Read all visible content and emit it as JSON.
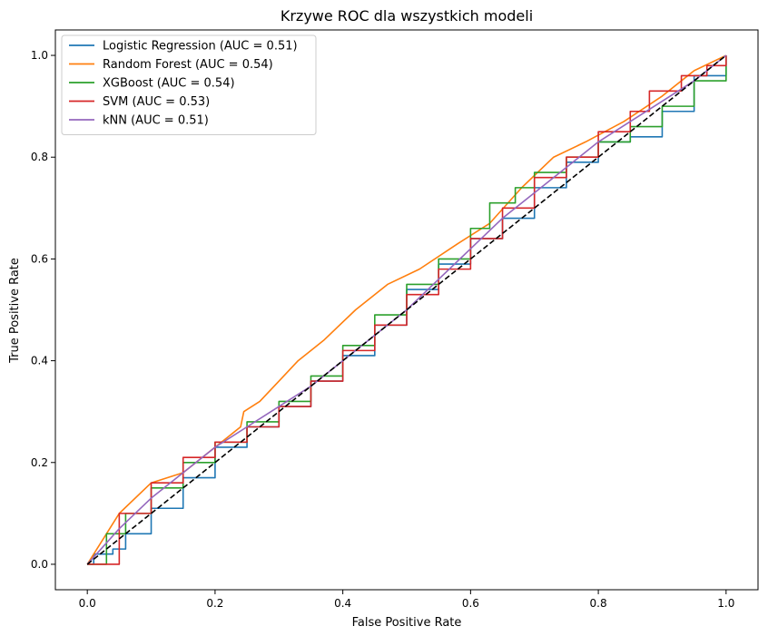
{
  "chart_data": {
    "type": "line",
    "title": "Krzywe ROC dla wszystkich modeli",
    "xlabel": "False Positive Rate",
    "ylabel": "True Positive Rate",
    "xlim": [
      -0.05,
      1.05
    ],
    "ylim": [
      -0.05,
      1.05
    ],
    "xticks": [
      "0.0",
      "0.2",
      "0.4",
      "0.6",
      "0.8",
      "1.0"
    ],
    "yticks": [
      "0.0",
      "0.2",
      "0.4",
      "0.6",
      "0.8",
      "1.0"
    ],
    "grid": false,
    "legend_position": "upper-left",
    "series": [
      {
        "name": "Logistic Regression (AUC = 0.51)",
        "color": "#1f77b4",
        "step": true,
        "x": [
          0,
          0.01,
          0.04,
          0.06,
          0.1,
          0.15,
          0.2,
          0.25,
          0.3,
          0.35,
          0.4,
          0.45,
          0.5,
          0.55,
          0.6,
          0.65,
          0.7,
          0.75,
          0.8,
          0.85,
          0.9,
          0.95,
          1.0
        ],
        "y": [
          0,
          0.02,
          0.03,
          0.06,
          0.11,
          0.17,
          0.23,
          0.27,
          0.31,
          0.36,
          0.41,
          0.47,
          0.54,
          0.59,
          0.64,
          0.68,
          0.74,
          0.79,
          0.83,
          0.84,
          0.89,
          0.96,
          1.0
        ]
      },
      {
        "name": "Random Forest (AUC = 0.54)",
        "color": "#ff7f0e",
        "step": false,
        "x": [
          0,
          0.05,
          0.1,
          0.15,
          0.19,
          0.22,
          0.24,
          0.245,
          0.27,
          0.3,
          0.33,
          0.37,
          0.42,
          0.47,
          0.52,
          0.58,
          0.63,
          0.68,
          0.73,
          0.78,
          0.84,
          0.9,
          0.95,
          1.0
        ],
        "y": [
          0,
          0.1,
          0.16,
          0.18,
          0.22,
          0.25,
          0.27,
          0.3,
          0.32,
          0.36,
          0.4,
          0.44,
          0.5,
          0.55,
          0.58,
          0.63,
          0.67,
          0.74,
          0.8,
          0.83,
          0.87,
          0.92,
          0.97,
          1.0
        ]
      },
      {
        "name": "XGBoost (AUC = 0.54)",
        "color": "#2ca02c",
        "step": true,
        "x": [
          0,
          0.03,
          0.06,
          0.1,
          0.15,
          0.2,
          0.25,
          0.3,
          0.35,
          0.4,
          0.45,
          0.5,
          0.55,
          0.6,
          0.63,
          0.67,
          0.7,
          0.75,
          0.8,
          0.85,
          0.9,
          0.95,
          1.0
        ],
        "y": [
          0,
          0.06,
          0.1,
          0.15,
          0.2,
          0.24,
          0.28,
          0.32,
          0.37,
          0.43,
          0.49,
          0.55,
          0.6,
          0.66,
          0.71,
          0.74,
          0.77,
          0.8,
          0.83,
          0.86,
          0.9,
          0.95,
          1.0
        ]
      },
      {
        "name": "SVM (AUC = 0.53)",
        "color": "#d62728",
        "step": true,
        "x": [
          0,
          0.05,
          0.1,
          0.15,
          0.2,
          0.25,
          0.3,
          0.35,
          0.4,
          0.45,
          0.5,
          0.55,
          0.6,
          0.65,
          0.7,
          0.75,
          0.8,
          0.85,
          0.88,
          0.93,
          0.97,
          1.0
        ],
        "y": [
          0,
          0.1,
          0.16,
          0.21,
          0.24,
          0.27,
          0.31,
          0.36,
          0.42,
          0.47,
          0.53,
          0.58,
          0.64,
          0.7,
          0.76,
          0.8,
          0.85,
          0.89,
          0.93,
          0.96,
          0.98,
          1.0
        ]
      },
      {
        "name": "kNN (AUC = 0.51)",
        "color": "#9467bd",
        "step": false,
        "x": [
          0,
          0.05,
          0.1,
          0.15,
          0.2,
          0.25,
          0.3,
          0.35,
          0.4,
          0.45,
          0.5,
          0.55,
          0.6,
          0.65,
          0.7,
          0.75,
          0.8,
          0.85,
          0.9,
          0.95,
          1.0
        ],
        "y": [
          0,
          0.07,
          0.13,
          0.18,
          0.23,
          0.27,
          0.31,
          0.35,
          0.4,
          0.45,
          0.5,
          0.56,
          0.62,
          0.68,
          0.73,
          0.78,
          0.83,
          0.87,
          0.91,
          0.95,
          1.0
        ]
      }
    ],
    "reference_line": {
      "color": "#000000",
      "dash": true,
      "x": [
        0,
        1
      ],
      "y": [
        0,
        1
      ]
    }
  }
}
